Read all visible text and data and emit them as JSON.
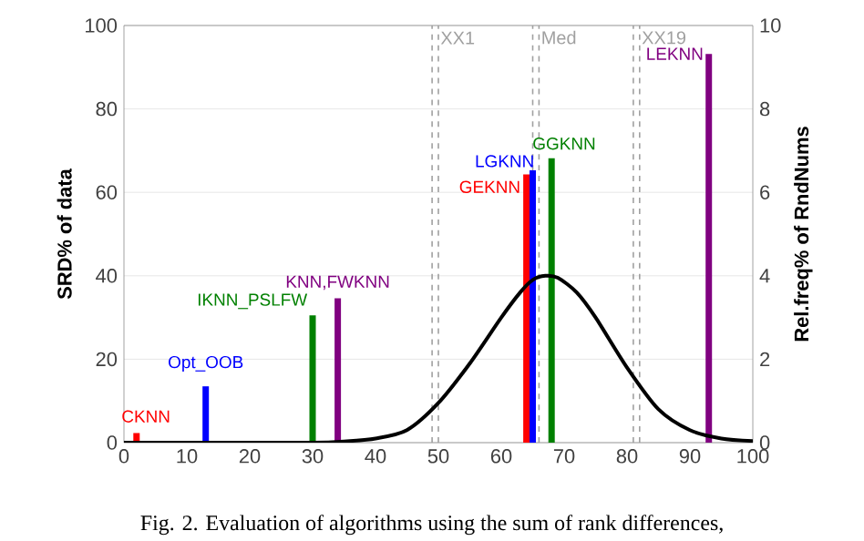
{
  "chart_data": {
    "type": "bar",
    "xlabel": null,
    "ylabel": "SRD% of data",
    "y2label": "Rel.freq% of RndNums",
    "xlim": [
      0,
      100
    ],
    "xticks": [
      0,
      10,
      20,
      30,
      40,
      50,
      60,
      70,
      80,
      90,
      100
    ],
    "ylim": [
      0,
      100
    ],
    "yticks": [
      0,
      20,
      40,
      60,
      80,
      100
    ],
    "y2lim": [
      0,
      10
    ],
    "y2ticks": [
      0,
      2,
      4,
      6,
      8,
      10
    ],
    "grid": "y",
    "series": [
      {
        "name": "CKNN",
        "color": "#ff0000",
        "x": [
          2
        ],
        "values": [
          2.3
        ]
      },
      {
        "name": "Opt_OOB",
        "color": "#0000ff",
        "x": [
          13
        ],
        "values": [
          13.5
        ]
      },
      {
        "name": "IKNN_PSLFW",
        "color": "#008000",
        "x": [
          30
        ],
        "values": [
          30.5
        ]
      },
      {
        "name": "KNN,FWKNN",
        "color": "#800080",
        "x": [
          34
        ],
        "values": [
          34.6
        ]
      },
      {
        "name": "GEKNN",
        "color": "#ff0000",
        "x": [
          64
        ],
        "values": [
          64.3
        ]
      },
      {
        "name": "LGKNN",
        "color": "#0000ff",
        "x": [
          65
        ],
        "values": [
          65.3
        ]
      },
      {
        "name": "GGKNN",
        "color": "#008000",
        "x": [
          68
        ],
        "values": [
          68.2
        ]
      },
      {
        "name": "LEKNN",
        "color": "#800080",
        "x": [
          93
        ],
        "values": [
          93.2
        ]
      },
      {
        "type": "line",
        "axis": "y2",
        "color": "#000000",
        "x": [
          0,
          10,
          20,
          30,
          35,
          40,
          45,
          50,
          55,
          60,
          63,
          65,
          67,
          69,
          72,
          75,
          80,
          85,
          90,
          95,
          100
        ],
        "values": [
          0,
          0,
          0,
          0,
          0.03,
          0.1,
          0.3,
          0.95,
          1.9,
          3.0,
          3.6,
          3.9,
          4.0,
          3.95,
          3.6,
          3.0,
          1.8,
          0.8,
          0.3,
          0.1,
          0.04
        ]
      }
    ],
    "ref_lines": [
      {
        "axis": "x",
        "value": 49,
        "color": "#a0a0a0",
        "line_style": "dashed"
      },
      {
        "axis": "x",
        "value": 50,
        "label": "XX1",
        "color": "#a0a0a0",
        "line_style": "dashed"
      },
      {
        "axis": "x",
        "value": 65,
        "color": "#a0a0a0",
        "line_style": "dashed"
      },
      {
        "axis": "x",
        "value": 66,
        "label": "Med",
        "color": "#a0a0a0",
        "line_style": "dashed"
      },
      {
        "axis": "x",
        "value": 81,
        "color": "#a0a0a0",
        "line_style": "dashed"
      },
      {
        "axis": "x",
        "value": 82,
        "label": "XX19",
        "color": "#a0a0a0",
        "line_style": "dashed"
      }
    ],
    "annotations": [
      "Fig. 2.    Evaluation of algorithms using the sum of rank differences,"
    ]
  }
}
